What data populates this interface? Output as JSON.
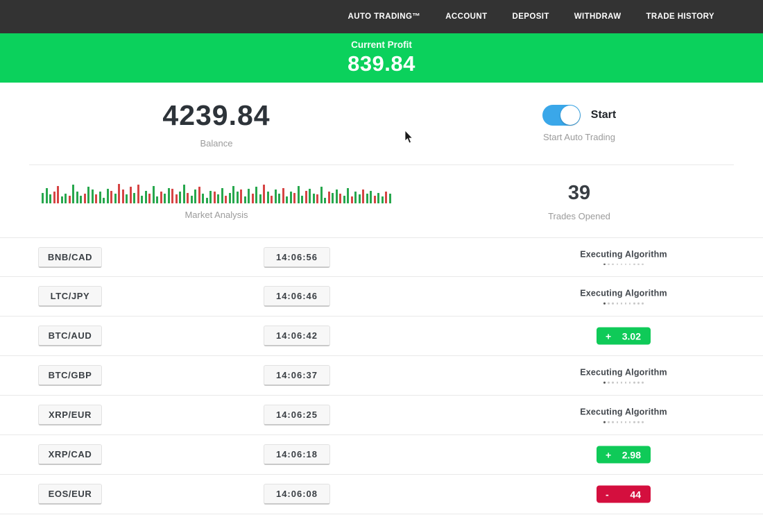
{
  "nav": {
    "items": [
      {
        "label": "AUTO TRADING™"
      },
      {
        "label": "ACCOUNT"
      },
      {
        "label": "DEPOSIT"
      },
      {
        "label": "WITHDRAW"
      },
      {
        "label": "TRADE HISTORY"
      }
    ]
  },
  "banner": {
    "label": "Current Profit",
    "value": "839.84",
    "bg": "#0bd15c"
  },
  "stats": {
    "balance": {
      "value": "4239.84",
      "label": "Balance"
    },
    "auto_trading": {
      "toggle_label": "Start",
      "label": "Start Auto Trading",
      "toggle_on": true,
      "toggle_color": "#3aa7e9"
    },
    "market": {
      "label": "Market Analysis",
      "bar_colors": {
        "up": "#27a74d",
        "down": "#d64444"
      },
      "bars": [
        [
          "g",
          0.55
        ],
        [
          "g",
          0.8
        ],
        [
          "g",
          0.45
        ],
        [
          "r",
          0.6
        ],
        [
          "r",
          0.9
        ],
        [
          "g",
          0.35
        ],
        [
          "g",
          0.5
        ],
        [
          "r",
          0.4
        ],
        [
          "g",
          0.95
        ],
        [
          "g",
          0.6
        ],
        [
          "g",
          0.4
        ],
        [
          "r",
          0.5
        ],
        [
          "g",
          0.85
        ],
        [
          "g",
          0.7
        ],
        [
          "r",
          0.45
        ],
        [
          "g",
          0.6
        ],
        [
          "g",
          0.3
        ],
        [
          "g",
          0.75
        ],
        [
          "r",
          0.65
        ],
        [
          "g",
          0.5
        ],
        [
          "r",
          1.0
        ],
        [
          "r",
          0.7
        ],
        [
          "g",
          0.45
        ],
        [
          "r",
          0.85
        ],
        [
          "g",
          0.55
        ],
        [
          "r",
          0.95
        ],
        [
          "g",
          0.4
        ],
        [
          "g",
          0.65
        ],
        [
          "r",
          0.5
        ],
        [
          "g",
          0.9
        ],
        [
          "g",
          0.35
        ],
        [
          "r",
          0.6
        ],
        [
          "g",
          0.5
        ],
        [
          "g",
          0.8
        ],
        [
          "r",
          0.75
        ],
        [
          "r",
          0.45
        ],
        [
          "g",
          0.6
        ],
        [
          "g",
          0.95
        ],
        [
          "r",
          0.55
        ],
        [
          "g",
          0.4
        ],
        [
          "g",
          0.7
        ],
        [
          "r",
          0.85
        ],
        [
          "g",
          0.5
        ],
        [
          "g",
          0.3
        ],
        [
          "g",
          0.65
        ],
        [
          "r",
          0.6
        ],
        [
          "g",
          0.45
        ],
        [
          "g",
          0.8
        ],
        [
          "r",
          0.4
        ],
        [
          "g",
          0.55
        ],
        [
          "g",
          0.9
        ],
        [
          "g",
          0.6
        ],
        [
          "r",
          0.7
        ],
        [
          "g",
          0.35
        ],
        [
          "g",
          0.75
        ],
        [
          "r",
          0.5
        ],
        [
          "g",
          0.85
        ],
        [
          "g",
          0.45
        ],
        [
          "r",
          0.95
        ],
        [
          "g",
          0.6
        ],
        [
          "r",
          0.4
        ],
        [
          "g",
          0.7
        ],
        [
          "g",
          0.5
        ],
        [
          "r",
          0.8
        ],
        [
          "g",
          0.35
        ],
        [
          "g",
          0.6
        ],
        [
          "r",
          0.55
        ],
        [
          "g",
          0.9
        ],
        [
          "g",
          0.4
        ],
        [
          "r",
          0.65
        ],
        [
          "g",
          0.75
        ],
        [
          "g",
          0.5
        ],
        [
          "r",
          0.45
        ],
        [
          "g",
          0.85
        ],
        [
          "g",
          0.3
        ],
        [
          "r",
          0.6
        ],
        [
          "g",
          0.55
        ],
        [
          "g",
          0.7
        ],
        [
          "r",
          0.5
        ],
        [
          "g",
          0.4
        ],
        [
          "g",
          0.8
        ],
        [
          "r",
          0.35
        ],
        [
          "g",
          0.6
        ],
        [
          "g",
          0.45
        ],
        [
          "r",
          0.7
        ],
        [
          "g",
          0.5
        ],
        [
          "g",
          0.65
        ],
        [
          "r",
          0.4
        ],
        [
          "g",
          0.55
        ],
        [
          "g",
          0.35
        ],
        [
          "r",
          0.6
        ],
        [
          "g",
          0.5
        ]
      ]
    },
    "trades_opened": {
      "value": "39",
      "label": "Trades Opened"
    }
  },
  "trades": {
    "executing_label": "Executing Algorithm",
    "badge_colors": {
      "profit": "#0fca58",
      "loss": "#d40f3e"
    },
    "rows": [
      {
        "pair": "BNB/CAD",
        "time": "14:06:56",
        "status": {
          "type": "executing"
        }
      },
      {
        "pair": "LTC/JPY",
        "time": "14:06:46",
        "status": {
          "type": "executing"
        }
      },
      {
        "pair": "BTC/AUD",
        "time": "14:06:42",
        "status": {
          "type": "profit",
          "sign": "+",
          "value": "3.02"
        }
      },
      {
        "pair": "BTC/GBP",
        "time": "14:06:37",
        "status": {
          "type": "executing"
        }
      },
      {
        "pair": "XRP/EUR",
        "time": "14:06:25",
        "status": {
          "type": "executing"
        }
      },
      {
        "pair": "XRP/CAD",
        "time": "14:06:18",
        "status": {
          "type": "profit",
          "sign": "+",
          "value": "2.98"
        }
      },
      {
        "pair": "EOS/EUR",
        "time": "14:06:08",
        "status": {
          "type": "loss",
          "sign": "-",
          "value": "44"
        }
      }
    ]
  }
}
